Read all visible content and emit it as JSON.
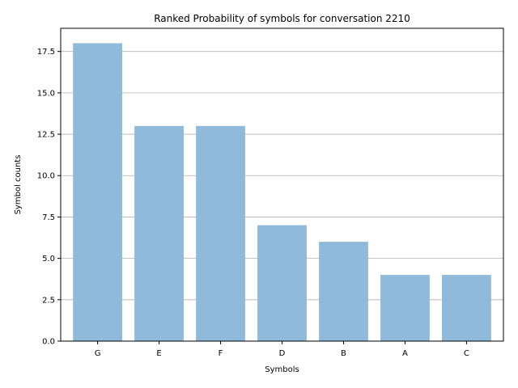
{
  "chart_data": {
    "type": "bar",
    "title": "Ranked Probability of symbols for conversation 2210",
    "xlabel": "Symbols",
    "ylabel": "Symbol counts",
    "categories": [
      "G",
      "E",
      "F",
      "D",
      "B",
      "A",
      "C"
    ],
    "values": [
      18,
      13,
      13,
      7,
      6,
      4,
      4
    ],
    "ylim": [
      0,
      18.9
    ],
    "yticks": [
      0.0,
      2.5,
      5.0,
      7.5,
      10.0,
      12.5,
      15.0,
      17.5
    ],
    "ytick_labels": [
      "0.0",
      "2.5",
      "5.0",
      "7.5",
      "10.0",
      "12.5",
      "15.0",
      "17.5"
    ],
    "grid": "y-major",
    "bar_color": "#8fbad9",
    "grid_color": "#b0b0b0"
  }
}
